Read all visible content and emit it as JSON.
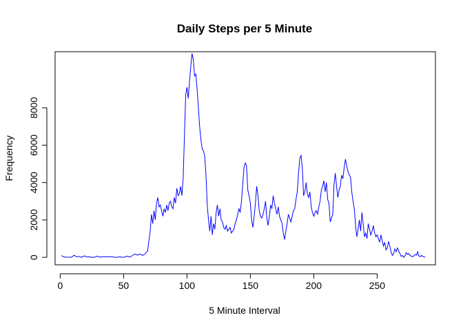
{
  "chart_data": {
    "type": "line",
    "title": "Daily Steps per 5 Minute",
    "xlabel": "5 Minute Interval",
    "ylabel": "Frequency",
    "xlim": [
      -4,
      296
    ],
    "ylim": [
      -400,
      11000
    ],
    "x_ticks": [
      0,
      50,
      100,
      150,
      200,
      250
    ],
    "y_ticks": [
      0,
      2000,
      4000,
      6000,
      8000
    ],
    "grid": false,
    "legend": "none",
    "series": [
      {
        "color": "#0000ff",
        "points": [
          [
            1,
            91
          ],
          [
            3,
            18
          ],
          [
            5,
            7
          ],
          [
            7,
            8
          ],
          [
            9,
            4
          ],
          [
            11,
            111
          ],
          [
            13,
            28
          ],
          [
            15,
            46
          ],
          [
            17,
            0
          ],
          [
            19,
            78
          ],
          [
            21,
            19
          ],
          [
            23,
            28
          ],
          [
            25,
            0
          ],
          [
            27,
            0
          ],
          [
            29,
            66
          ],
          [
            31,
            10
          ],
          [
            33,
            23
          ],
          [
            35,
            33
          ],
          [
            37,
            40
          ],
          [
            39,
            19
          ],
          [
            41,
            33
          ],
          [
            43,
            0
          ],
          [
            45,
            0
          ],
          [
            47,
            26
          ],
          [
            49,
            0
          ],
          [
            51,
            15
          ],
          [
            53,
            64
          ],
          [
            55,
            11
          ],
          [
            57,
            98
          ],
          [
            59,
            176
          ],
          [
            61,
            120
          ],
          [
            63,
            180
          ],
          [
            65,
            100
          ],
          [
            67,
            180
          ],
          [
            69,
            350
          ],
          [
            70,
            900
          ],
          [
            71,
            1400
          ],
          [
            72,
            2300
          ],
          [
            73,
            1800
          ],
          [
            74,
            2500
          ],
          [
            75,
            2000
          ],
          [
            76,
            2900
          ],
          [
            77,
            3200
          ],
          [
            78,
            2700
          ],
          [
            79,
            2800
          ],
          [
            80,
            2500
          ],
          [
            81,
            2200
          ],
          [
            82,
            2600
          ],
          [
            83,
            2400
          ],
          [
            84,
            2800
          ],
          [
            85,
            2500
          ],
          [
            86,
            2900
          ],
          [
            87,
            3000
          ],
          [
            88,
            2700
          ],
          [
            89,
            2600
          ],
          [
            90,
            3200
          ],
          [
            91,
            2900
          ],
          [
            92,
            3700
          ],
          [
            93,
            3300
          ],
          [
            94,
            3400
          ],
          [
            95,
            3800
          ],
          [
            96,
            3300
          ],
          [
            97,
            4200
          ],
          [
            98,
            6500
          ],
          [
            99,
            8700
          ],
          [
            100,
            9100
          ],
          [
            101,
            8500
          ],
          [
            102,
            9400
          ],
          [
            103,
            10200
          ],
          [
            104,
            10900
          ],
          [
            105,
            10600
          ],
          [
            106,
            9700
          ],
          [
            107,
            9800
          ],
          [
            108,
            9000
          ],
          [
            109,
            8000
          ],
          [
            110,
            7000
          ],
          [
            111,
            6300
          ],
          [
            112,
            5800
          ],
          [
            113,
            5700
          ],
          [
            114,
            5400
          ],
          [
            115,
            4400
          ],
          [
            116,
            2800
          ],
          [
            117,
            2000
          ],
          [
            118,
            1400
          ],
          [
            119,
            2200
          ],
          [
            120,
            1200
          ],
          [
            121,
            1800
          ],
          [
            122,
            1500
          ],
          [
            123,
            2400
          ],
          [
            124,
            2800
          ],
          [
            125,
            2200
          ],
          [
            126,
            2600
          ],
          [
            127,
            2000
          ],
          [
            128,
            1900
          ],
          [
            129,
            1600
          ],
          [
            130,
            1500
          ],
          [
            131,
            1700
          ],
          [
            132,
            1400
          ],
          [
            133,
            1500
          ],
          [
            134,
            1600
          ],
          [
            135,
            1300
          ],
          [
            136,
            1400
          ],
          [
            137,
            1500
          ],
          [
            138,
            1800
          ],
          [
            139,
            2000
          ],
          [
            140,
            2300
          ],
          [
            141,
            2600
          ],
          [
            142,
            2400
          ],
          [
            143,
            3000
          ],
          [
            144,
            3900
          ],
          [
            145,
            4800
          ],
          [
            146,
            5050
          ],
          [
            147,
            4900
          ],
          [
            148,
            3600
          ],
          [
            149,
            3300
          ],
          [
            150,
            2900
          ],
          [
            151,
            2000
          ],
          [
            152,
            1600
          ],
          [
            153,
            2200
          ],
          [
            154,
            2900
          ],
          [
            155,
            3800
          ],
          [
            156,
            3300
          ],
          [
            157,
            2500
          ],
          [
            158,
            2200
          ],
          [
            159,
            2100
          ],
          [
            160,
            2300
          ],
          [
            161,
            2600
          ],
          [
            162,
            3000
          ],
          [
            163,
            2100
          ],
          [
            164,
            1700
          ],
          [
            165,
            2200
          ],
          [
            166,
            2800
          ],
          [
            167,
            2600
          ],
          [
            168,
            3300
          ],
          [
            169,
            2900
          ],
          [
            170,
            2600
          ],
          [
            171,
            2300
          ],
          [
            172,
            2700
          ],
          [
            173,
            2200
          ],
          [
            174,
            2000
          ],
          [
            175,
            1800
          ],
          [
            176,
            1300
          ],
          [
            177,
            950
          ],
          [
            178,
            1400
          ],
          [
            179,
            1800
          ],
          [
            180,
            2300
          ],
          [
            181,
            2100
          ],
          [
            182,
            1900
          ],
          [
            183,
            2200
          ],
          [
            184,
            2500
          ],
          [
            185,
            2600
          ],
          [
            186,
            3100
          ],
          [
            187,
            3500
          ],
          [
            188,
            4500
          ],
          [
            189,
            5300
          ],
          [
            190,
            5450
          ],
          [
            191,
            4800
          ],
          [
            192,
            3300
          ],
          [
            193,
            3500
          ],
          [
            194,
            4000
          ],
          [
            195,
            3400
          ],
          [
            196,
            3200
          ],
          [
            197,
            3500
          ],
          [
            198,
            2700
          ],
          [
            199,
            2400
          ],
          [
            200,
            2200
          ],
          [
            201,
            2400
          ],
          [
            202,
            2500
          ],
          [
            203,
            2300
          ],
          [
            204,
            2700
          ],
          [
            205,
            3000
          ],
          [
            206,
            3600
          ],
          [
            207,
            3800
          ],
          [
            208,
            4100
          ],
          [
            209,
            3500
          ],
          [
            210,
            4000
          ],
          [
            211,
            3100
          ],
          [
            212,
            2900
          ],
          [
            213,
            1900
          ],
          [
            214,
            2100
          ],
          [
            215,
            2300
          ],
          [
            216,
            3900
          ],
          [
            217,
            4500
          ],
          [
            218,
            3800
          ],
          [
            219,
            3200
          ],
          [
            220,
            3600
          ],
          [
            221,
            3800
          ],
          [
            222,
            4400
          ],
          [
            223,
            4200
          ],
          [
            224,
            4800
          ],
          [
            225,
            5250
          ],
          [
            226,
            4900
          ],
          [
            227,
            4600
          ],
          [
            228,
            4400
          ],
          [
            229,
            4300
          ],
          [
            230,
            3500
          ],
          [
            231,
            3000
          ],
          [
            232,
            2600
          ],
          [
            233,
            1700
          ],
          [
            234,
            1100
          ],
          [
            235,
            1500
          ],
          [
            236,
            2000
          ],
          [
            237,
            1400
          ],
          [
            238,
            2400
          ],
          [
            239,
            1800
          ],
          [
            240,
            1100
          ],
          [
            241,
            1300
          ],
          [
            242,
            1000
          ],
          [
            243,
            1800
          ],
          [
            244,
            1500
          ],
          [
            245,
            1200
          ],
          [
            246,
            1400
          ],
          [
            247,
            1700
          ],
          [
            248,
            1300
          ],
          [
            249,
            1100
          ],
          [
            250,
            1200
          ],
          [
            251,
            1000
          ],
          [
            252,
            800
          ],
          [
            253,
            1200
          ],
          [
            254,
            900
          ],
          [
            255,
            600
          ],
          [
            256,
            800
          ],
          [
            257,
            400
          ],
          [
            258,
            500
          ],
          [
            259,
            850
          ],
          [
            260,
            600
          ],
          [
            261,
            300
          ],
          [
            262,
            100
          ],
          [
            263,
            200
          ],
          [
            264,
            450
          ],
          [
            265,
            300
          ],
          [
            266,
            500
          ],
          [
            267,
            350
          ],
          [
            268,
            200
          ],
          [
            269,
            50
          ],
          [
            270,
            100
          ],
          [
            271,
            0
          ],
          [
            272,
            80
          ],
          [
            273,
            250
          ],
          [
            274,
            150
          ],
          [
            275,
            200
          ],
          [
            276,
            100
          ],
          [
            277,
            60
          ],
          [
            278,
            30
          ],
          [
            279,
            80
          ],
          [
            280,
            150
          ],
          [
            281,
            120
          ],
          [
            282,
            300
          ],
          [
            283,
            60
          ],
          [
            284,
            40
          ],
          [
            285,
            100
          ],
          [
            286,
            50
          ],
          [
            287,
            20
          ],
          [
            288,
            10
          ]
        ]
      }
    ]
  }
}
